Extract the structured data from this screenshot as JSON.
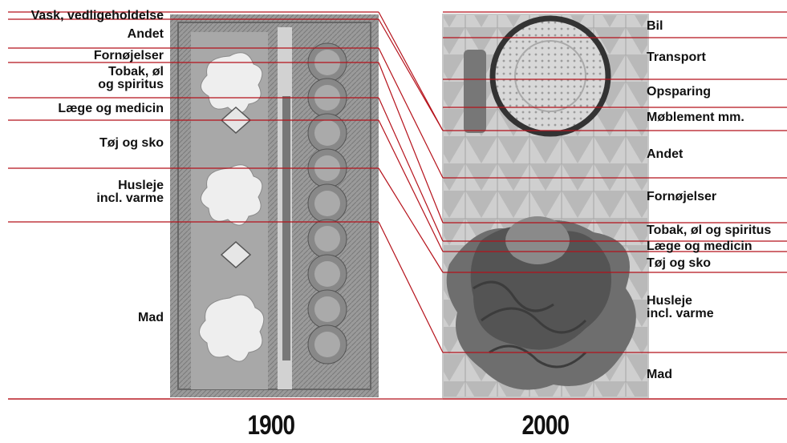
{
  "diagram": {
    "year_left": "1900",
    "year_right": "2000",
    "line_color": "#b5121b",
    "left_labels": [
      {
        "key": "vask",
        "lines": [
          "Vask, vedligeholdelse"
        ]
      },
      {
        "key": "andet",
        "lines": [
          "Andet"
        ]
      },
      {
        "key": "fornojelser",
        "lines": [
          "Fornøjelser"
        ]
      },
      {
        "key": "tobak",
        "lines": [
          "Tobak, øl",
          "og spiritus"
        ]
      },
      {
        "key": "laege",
        "lines": [
          "Læge og medicin"
        ]
      },
      {
        "key": "toj",
        "lines": [
          "Tøj og sko"
        ]
      },
      {
        "key": "husleje",
        "lines": [
          "Husleje",
          "incl. varme"
        ]
      },
      {
        "key": "mad",
        "lines": [
          "Mad"
        ]
      }
    ],
    "right_labels": [
      {
        "key": "bil",
        "lines": [
          "Bil"
        ]
      },
      {
        "key": "transport",
        "lines": [
          "Transport"
        ]
      },
      {
        "key": "opsparing",
        "lines": [
          "Opsparing"
        ]
      },
      {
        "key": "mobler",
        "lines": [
          "Møblement mm."
        ]
      },
      {
        "key": "andet",
        "lines": [
          "Andet"
        ]
      },
      {
        "key": "fornojelser",
        "lines": [
          "Fornøjelser"
        ]
      },
      {
        "key": "tobak",
        "lines": [
          "Tobak, øl og spiritus"
        ]
      },
      {
        "key": "laege",
        "lines": [
          "Læge og medicin"
        ]
      },
      {
        "key": "toj",
        "lines": [
          "Tøj og sko"
        ]
      },
      {
        "key": "husleje",
        "lines": [
          "Husleje",
          "incl. varme"
        ]
      },
      {
        "key": "mad",
        "lines": [
          "Mad"
        ]
      }
    ]
  }
}
